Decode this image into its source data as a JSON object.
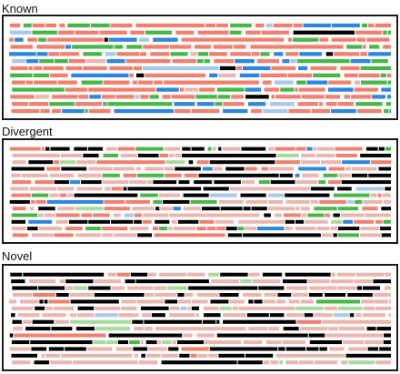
{
  "panels": [
    {
      "id": "known",
      "title": "Known",
      "rows": 13,
      "seed": 17,
      "palette": [
        {
          "color": "#f08070",
          "weight": 0.52
        },
        {
          "color": "#47b847",
          "weight": 0.2
        },
        {
          "color": "#2e86de",
          "weight": 0.17
        },
        {
          "color": "#e9b7b0",
          "weight": 0.05
        },
        {
          "color": "#000000",
          "weight": 0.03
        },
        {
          "color": "#a9c8ea",
          "weight": 0.03
        }
      ]
    },
    {
      "id": "divergent",
      "title": "Divergent",
      "rows": 14,
      "seed": 91,
      "palette": [
        {
          "color": "#e9b7b0",
          "weight": 0.34
        },
        {
          "color": "#000000",
          "weight": 0.24
        },
        {
          "color": "#f08070",
          "weight": 0.24
        },
        {
          "color": "#47b847",
          "weight": 0.08
        },
        {
          "color": "#2e86de",
          "weight": 0.05
        },
        {
          "color": "#a8dba0",
          "weight": 0.03
        },
        {
          "color": "#a9c8ea",
          "weight": 0.02
        }
      ]
    },
    {
      "id": "novel",
      "title": "Novel",
      "rows": 14,
      "seed": 233,
      "palette": [
        {
          "color": "#e9b7b0",
          "weight": 0.48
        },
        {
          "color": "#000000",
          "weight": 0.4
        },
        {
          "color": "#a8dba0",
          "weight": 0.06
        },
        {
          "color": "#f08070",
          "weight": 0.03
        },
        {
          "color": "#a9c8ea",
          "weight": 0.02
        },
        {
          "color": "#47b847",
          "weight": 0.01
        }
      ]
    }
  ]
}
